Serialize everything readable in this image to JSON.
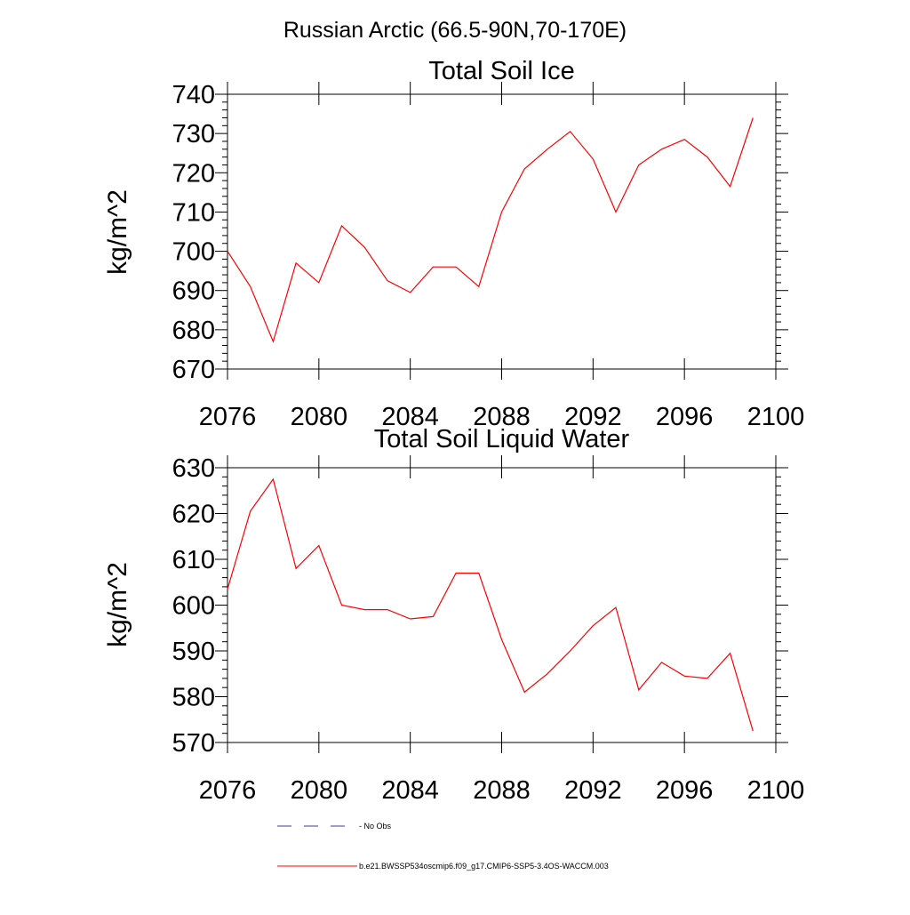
{
  "figure": {
    "suptitle": "Russian Arctic (66.5-90N,70-170E)"
  },
  "chart_data": [
    {
      "type": "line",
      "title": "Total Soil Ice",
      "xlabel": "",
      "ylabel": "kg/m^2",
      "xlim": [
        2076,
        2100
      ],
      "ylim": [
        670,
        740
      ],
      "xticks": [
        2076,
        2080,
        2084,
        2088,
        2092,
        2096,
        2100
      ],
      "yticks": [
        670,
        680,
        690,
        700,
        710,
        720,
        730,
        740
      ],
      "series": [
        {
          "name": "b.e21.BWSSP534oscmip6.f09_g17.CMIP6-SSP5-3.4OS-WACCM.003",
          "color": "#ff0000",
          "x": [
            2076,
            2077,
            2078,
            2079,
            2080,
            2081,
            2082,
            2083,
            2084,
            2085,
            2086,
            2087,
            2088,
            2089,
            2090,
            2091,
            2092,
            2093,
            2094,
            2095,
            2096,
            2097,
            2098,
            2099
          ],
          "values": [
            700.0,
            691.0,
            677.0,
            697.0,
            692.0,
            706.5,
            701.0,
            692.5,
            689.5,
            696.0,
            696.0,
            691.0,
            710.0,
            721.0,
            726.0,
            730.5,
            723.5,
            710.0,
            722.0,
            726.0,
            728.5,
            724.0,
            716.5,
            734.0
          ]
        }
      ]
    },
    {
      "type": "line",
      "title": "Total Soil Liquid Water",
      "xlabel": "",
      "ylabel": "kg/m^2",
      "xlim": [
        2076,
        2100
      ],
      "ylim": [
        570,
        630
      ],
      "xticks": [
        2076,
        2080,
        2084,
        2088,
        2092,
        2096,
        2100
      ],
      "yticks": [
        570,
        580,
        590,
        600,
        610,
        620,
        630
      ],
      "series": [
        {
          "name": "b.e21.BWSSP534oscmip6.f09_g17.CMIP6-SSP5-3.4OS-WACCM.003",
          "color": "#ff0000",
          "x": [
            2076,
            2077,
            2078,
            2079,
            2080,
            2081,
            2082,
            2083,
            2084,
            2085,
            2086,
            2087,
            2088,
            2089,
            2090,
            2091,
            2092,
            2093,
            2094,
            2095,
            2096,
            2097,
            2098,
            2099
          ],
          "values": [
            603.5,
            620.5,
            627.5,
            608.0,
            613.0,
            600.0,
            599.0,
            599.0,
            597.0,
            597.5,
            607.0,
            607.0,
            592.5,
            581.0,
            585.0,
            590.0,
            595.5,
            599.5,
            581.5,
            587.5,
            584.5,
            584.0,
            589.5,
            572.5
          ]
        }
      ]
    }
  ],
  "legend": [
    {
      "label": "No Obs",
      "style": "dashed",
      "color": "#3b3b8f"
    },
    {
      "label": "b.e21.BWSSP534oscmip6.f09_g17.CMIP6-SSP5-3.4OS-WACCM.003",
      "style": "solid",
      "color": "#ff0000"
    }
  ]
}
